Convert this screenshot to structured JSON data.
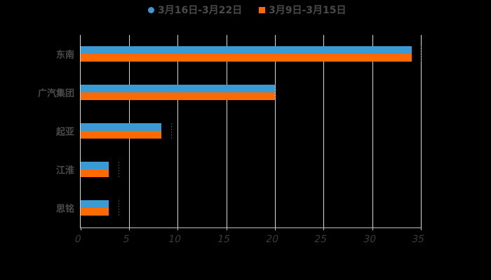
{
  "chart_data": {
    "type": "bar",
    "orientation": "horizontal",
    "title": "",
    "xlabel": "",
    "ylabel": "",
    "categories": [
      "东南",
      "广汽集团",
      "起亚",
      "江淮",
      "思铭"
    ],
    "series": [
      {
        "name": "3月16日-3月22日",
        "color": "#3a9bd4",
        "values": [
          34,
          20,
          8.3,
          2.9,
          2.9
        ]
      },
      {
        "name": "3月9日-3月15日",
        "color": "#ff6a00",
        "values": [
          34,
          20,
          8.3,
          2.9,
          2.9
        ]
      }
    ],
    "xlim": [
      0,
      35
    ],
    "xticks": [
      "0",
      "5",
      "10",
      "15",
      "20",
      "25",
      "30",
      "35"
    ],
    "grid": true,
    "legend_position": "top"
  },
  "legend": {
    "items": [
      {
        "label": "3月16日-3月22日",
        "color": "#3a9bd4",
        "marker": "circle"
      },
      {
        "label": "3月9日-3月15日",
        "color": "#ff6a00",
        "marker": "square"
      }
    ]
  },
  "colors": {
    "background": "#000000",
    "grid": "#d9d9d9",
    "text": "#4a4a4a"
  }
}
